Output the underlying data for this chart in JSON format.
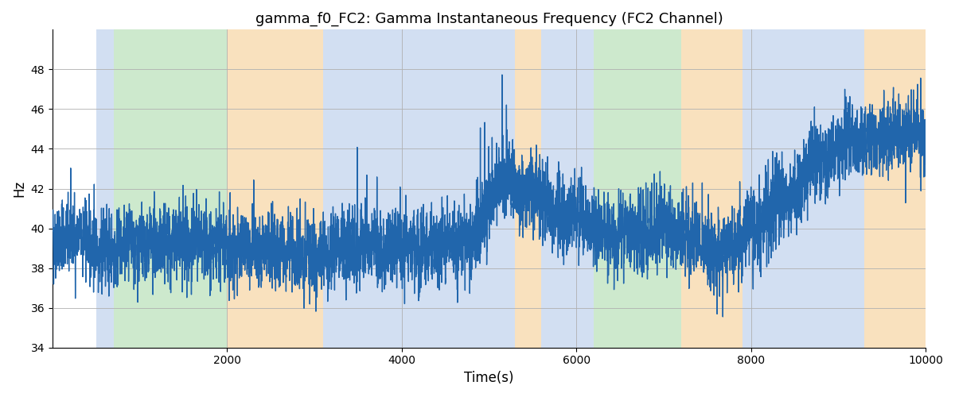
{
  "title": "gamma_f0_FC2: Gamma Instantaneous Frequency (FC2 Channel)",
  "xlabel": "Time(s)",
  "ylabel": "Hz",
  "xlim": [
    0,
    10000
  ],
  "ylim": [
    34,
    50
  ],
  "yticks": [
    34,
    36,
    38,
    40,
    42,
    44,
    46,
    48
  ],
  "xticks": [
    2000,
    4000,
    6000,
    8000,
    10000
  ],
  "line_color": "#2166ac",
  "line_width": 1.0,
  "background_color": "#ffffff",
  "grid_color": "#b0b0b0",
  "bands": [
    {
      "xmin": 500,
      "xmax": 700,
      "color": "#aec6e8",
      "alpha": 0.55
    },
    {
      "xmin": 700,
      "xmax": 2000,
      "color": "#90d090",
      "alpha": 0.45
    },
    {
      "xmin": 2000,
      "xmax": 3100,
      "color": "#f5c98a",
      "alpha": 0.55
    },
    {
      "xmin": 3100,
      "xmax": 5300,
      "color": "#aec6e8",
      "alpha": 0.55
    },
    {
      "xmin": 5300,
      "xmax": 5600,
      "color": "#f5c98a",
      "alpha": 0.55
    },
    {
      "xmin": 5600,
      "xmax": 6200,
      "color": "#aec6e8",
      "alpha": 0.55
    },
    {
      "xmin": 6200,
      "xmax": 7200,
      "color": "#90d090",
      "alpha": 0.45
    },
    {
      "xmin": 7200,
      "xmax": 7900,
      "color": "#f5c98a",
      "alpha": 0.55
    },
    {
      "xmin": 7900,
      "xmax": 9300,
      "color": "#aec6e8",
      "alpha": 0.55
    },
    {
      "xmin": 9300,
      "xmax": 10000,
      "color": "#f5c98a",
      "alpha": 0.55
    }
  ],
  "seed": 42,
  "n_points": 10000,
  "title_fontsize": 13
}
